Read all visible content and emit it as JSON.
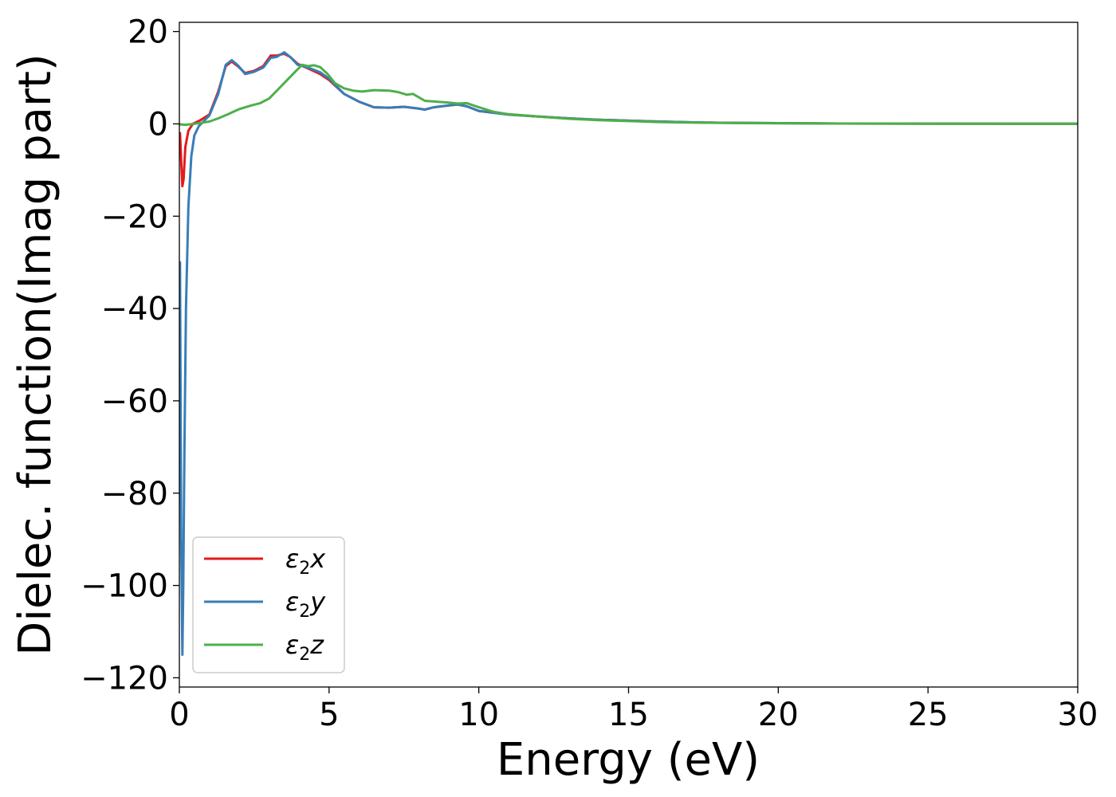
{
  "chart_data": {
    "type": "line",
    "title": "",
    "xlabel": "Energy (eV)",
    "ylabel": "Dielec. function(Imag part)",
    "xlim": [
      0,
      30
    ],
    "ylim": [
      -122,
      22
    ],
    "xticks": [
      0,
      5,
      10,
      15,
      20,
      25,
      30
    ],
    "yticks": [
      -120,
      -100,
      -80,
      -60,
      -40,
      -20,
      0,
      20
    ],
    "grid": false,
    "legend_position": "lower-left",
    "series": [
      {
        "name": "ε₂x",
        "legend_base": "ε",
        "legend_sub": "2",
        "legend_var": "x",
        "color": "#e41a1c",
        "points": [
          [
            0.02,
            -2
          ],
          [
            0.06,
            -8
          ],
          [
            0.1,
            -13.5
          ],
          [
            0.14,
            -12
          ],
          [
            0.2,
            -5
          ],
          [
            0.3,
            -1.5
          ],
          [
            0.45,
            0
          ],
          [
            0.7,
            0.8
          ],
          [
            1.0,
            2
          ],
          [
            1.3,
            7
          ],
          [
            1.55,
            12.5
          ],
          [
            1.75,
            13.5
          ],
          [
            1.95,
            12.5
          ],
          [
            2.2,
            11
          ],
          [
            2.5,
            11.5
          ],
          [
            2.8,
            12.5
          ],
          [
            3.05,
            14.8
          ],
          [
            3.25,
            14.8
          ],
          [
            3.5,
            15.2
          ],
          [
            3.7,
            14.5
          ],
          [
            3.95,
            13
          ],
          [
            4.3,
            12
          ],
          [
            4.7,
            10.8
          ],
          [
            5.0,
            9.5
          ],
          [
            5.5,
            6.5
          ],
          [
            6.0,
            4.8
          ],
          [
            6.5,
            3.6
          ],
          [
            7.0,
            3.5
          ],
          [
            7.5,
            3.7
          ],
          [
            8.0,
            3.3
          ],
          [
            8.2,
            3.1
          ],
          [
            8.5,
            3.6
          ],
          [
            9.0,
            4
          ],
          [
            9.3,
            4.2
          ],
          [
            9.6,
            3.8
          ],
          [
            10.0,
            2.8
          ],
          [
            10.5,
            2.4
          ],
          [
            11.0,
            2.0
          ],
          [
            12.0,
            1.6
          ],
          [
            13.0,
            1.2
          ],
          [
            14.0,
            0.9
          ],
          [
            15.0,
            0.7
          ],
          [
            16.0,
            0.5
          ],
          [
            17.0,
            0.35
          ],
          [
            18.0,
            0.25
          ],
          [
            20.0,
            0.15
          ],
          [
            22.0,
            0.08
          ],
          [
            25.0,
            0.05
          ],
          [
            30.0,
            0.02
          ]
        ]
      },
      {
        "name": "ε₂y",
        "legend_base": "ε",
        "legend_sub": "2",
        "legend_var": "y",
        "color": "#377eb8",
        "points": [
          [
            0.02,
            -30
          ],
          [
            0.06,
            -90
          ],
          [
            0.1,
            -115
          ],
          [
            0.13,
            -100
          ],
          [
            0.17,
            -70
          ],
          [
            0.22,
            -40
          ],
          [
            0.3,
            -18
          ],
          [
            0.4,
            -7
          ],
          [
            0.5,
            -2.5
          ],
          [
            0.65,
            -0.5
          ],
          [
            0.8,
            0.5
          ],
          [
            1.0,
            1.8
          ],
          [
            1.3,
            6.5
          ],
          [
            1.55,
            12.8
          ],
          [
            1.75,
            13.8
          ],
          [
            1.95,
            12.7
          ],
          [
            2.2,
            10.8
          ],
          [
            2.5,
            11.3
          ],
          [
            2.8,
            12.2
          ],
          [
            3.05,
            14.3
          ],
          [
            3.25,
            14.5
          ],
          [
            3.5,
            15.5
          ],
          [
            3.7,
            14.5
          ],
          [
            3.95,
            12.8
          ],
          [
            4.3,
            12.2
          ],
          [
            4.7,
            11.2
          ],
          [
            5.0,
            9.8
          ],
          [
            5.5,
            6.5
          ],
          [
            6.0,
            4.8
          ],
          [
            6.5,
            3.6
          ],
          [
            7.0,
            3.5
          ],
          [
            7.5,
            3.7
          ],
          [
            8.0,
            3.3
          ],
          [
            8.2,
            3.1
          ],
          [
            8.5,
            3.6
          ],
          [
            9.0,
            4
          ],
          [
            9.3,
            4.2
          ],
          [
            9.6,
            3.8
          ],
          [
            10.0,
            2.8
          ],
          [
            10.5,
            2.4
          ],
          [
            11.0,
            2.0
          ],
          [
            12.0,
            1.6
          ],
          [
            13.0,
            1.2
          ],
          [
            14.0,
            0.9
          ],
          [
            15.0,
            0.7
          ],
          [
            16.0,
            0.5
          ],
          [
            17.0,
            0.35
          ],
          [
            18.0,
            0.25
          ],
          [
            20.0,
            0.15
          ],
          [
            22.0,
            0.08
          ],
          [
            25.0,
            0.05
          ],
          [
            30.0,
            0.02
          ]
        ]
      },
      {
        "name": "ε₂z",
        "legend_base": "ε",
        "legend_sub": "2",
        "legend_var": "z",
        "color": "#4daf4a",
        "points": [
          [
            0.02,
            -0.1
          ],
          [
            0.2,
            -0.2
          ],
          [
            0.5,
            0
          ],
          [
            0.8,
            0.3
          ],
          [
            1.0,
            0.5
          ],
          [
            1.3,
            1.2
          ],
          [
            1.6,
            2
          ],
          [
            2.0,
            3.2
          ],
          [
            2.4,
            4
          ],
          [
            2.7,
            4.5
          ],
          [
            3.0,
            5.5
          ],
          [
            3.3,
            7.5
          ],
          [
            3.6,
            9.5
          ],
          [
            3.9,
            11.5
          ],
          [
            4.1,
            12.8
          ],
          [
            4.3,
            12.5
          ],
          [
            4.5,
            12.7
          ],
          [
            4.7,
            12.3
          ],
          [
            4.95,
            10.8
          ],
          [
            5.2,
            8.8
          ],
          [
            5.5,
            7.7
          ],
          [
            5.8,
            7.2
          ],
          [
            6.1,
            7.0
          ],
          [
            6.5,
            7.3
          ],
          [
            7.0,
            7.2
          ],
          [
            7.3,
            6.9
          ],
          [
            7.6,
            6.3
          ],
          [
            7.8,
            6.5
          ],
          [
            8.2,
            5
          ],
          [
            8.6,
            4.8
          ],
          [
            9.0,
            4.6
          ],
          [
            9.3,
            4.4
          ],
          [
            9.6,
            4.5
          ],
          [
            10.0,
            3.6
          ],
          [
            10.5,
            2.6
          ],
          [
            11.0,
            2.1
          ],
          [
            12.0,
            1.6
          ],
          [
            13.0,
            1.1
          ],
          [
            14.0,
            0.8
          ],
          [
            15.0,
            0.6
          ],
          [
            16.0,
            0.4
          ],
          [
            17.0,
            0.3
          ],
          [
            18.0,
            0.22
          ],
          [
            20.0,
            0.12
          ],
          [
            22.0,
            0.08
          ],
          [
            25.0,
            0.04
          ],
          [
            30.0,
            0.02
          ]
        ]
      }
    ]
  }
}
